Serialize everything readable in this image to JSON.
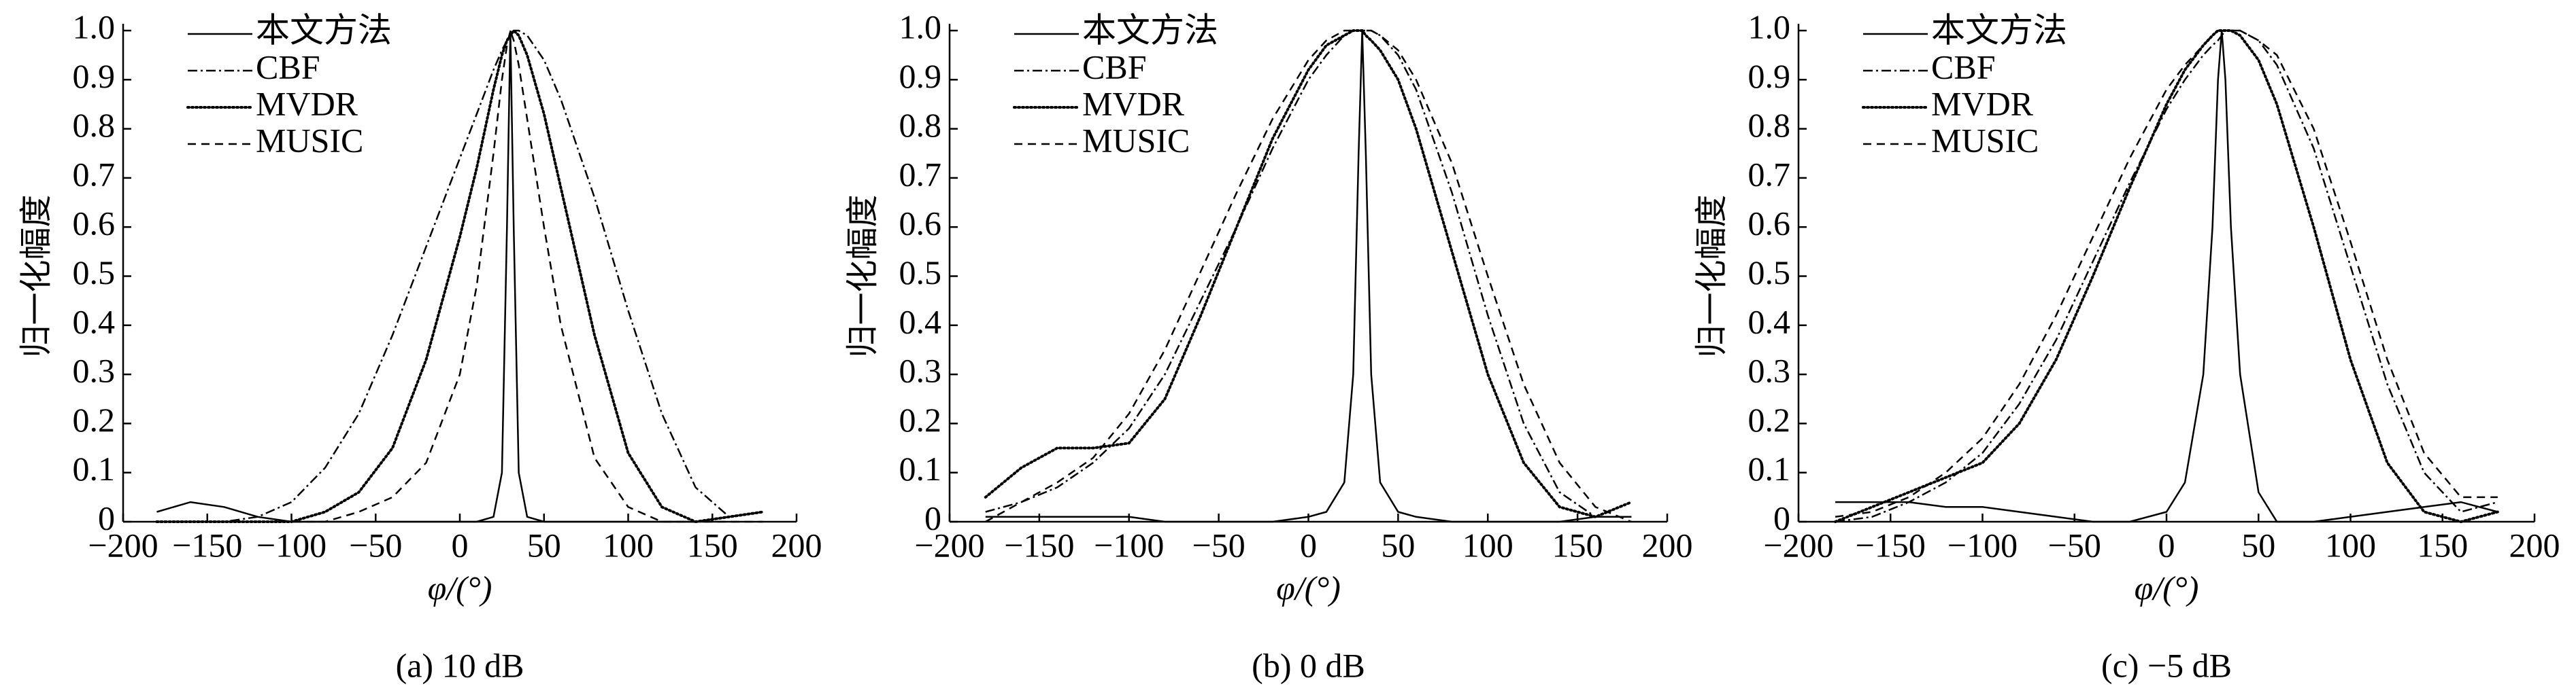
{
  "chart_data": [
    {
      "type": "line",
      "title": "(a) 10 dB",
      "xlabel": "φ/(°)",
      "ylabel": "归一化幅度",
      "x": [
        -180,
        -160,
        -140,
        -120,
        -100,
        -80,
        -60,
        -40,
        -20,
        0,
        10,
        20,
        25,
        28,
        30,
        32,
        35,
        40,
        50,
        60,
        80,
        100,
        120,
        140,
        160,
        180
      ],
      "series": [
        {
          "name": "本文方法",
          "color": "#000000",
          "values": [
            0.02,
            0.04,
            0.03,
            0.01,
            0.0,
            0.0,
            0.0,
            0.0,
            0.0,
            0.0,
            0.0,
            0.01,
            0.1,
            0.6,
            1,
            0.6,
            0.1,
            0.01,
            0.0,
            0.0,
            0.0,
            0.0,
            0.0,
            0.0,
            0.01,
            0.02
          ]
        },
        {
          "name": "CBF",
          "color": "#000000",
          "values": [
            0.0,
            0.0,
            0.0,
            0.01,
            0.04,
            0.11,
            0.22,
            0.38,
            0.56,
            0.74,
            0.83,
            0.92,
            0.96,
            0.98,
            0.99,
            1.0,
            1.0,
            0.99,
            0.94,
            0.86,
            0.66,
            0.43,
            0.22,
            0.07,
            0.01,
            0.02
          ]
        },
        {
          "name": "MVDR",
          "color": "#000000",
          "values": [
            0.0,
            0.0,
            0.0,
            0.0,
            0.0,
            0.02,
            0.06,
            0.15,
            0.33,
            0.58,
            0.72,
            0.88,
            0.95,
            0.98,
            0.99,
            1.0,
            0.99,
            0.95,
            0.83,
            0.68,
            0.38,
            0.14,
            0.03,
            0.0,
            0.01,
            0.02
          ]
        },
        {
          "name": "MUSIC",
          "color": "#000000",
          "values": [
            0.0,
            0.0,
            0.0,
            0.0,
            0.0,
            0.0,
            0.02,
            0.05,
            0.12,
            0.3,
            0.48,
            0.75,
            0.9,
            0.97,
            1.0,
            0.98,
            0.93,
            0.82,
            0.6,
            0.4,
            0.13,
            0.03,
            0.0,
            0.0,
            0.0,
            0.0
          ]
        }
      ],
      "xlim": [
        -200,
        200
      ],
      "xticks": [
        {
          "value": -200,
          "label": "−200"
        },
        {
          "value": -150,
          "label": "−150"
        },
        {
          "value": -100,
          "label": "−100"
        },
        {
          "value": -50,
          "label": "−50"
        },
        0,
        50,
        100,
        150,
        200
      ],
      "ylim": [
        0,
        1
      ],
      "yticks": [
        0,
        0.1,
        0.2,
        0.3,
        0.4,
        0.5,
        0.6,
        0.7,
        0.8,
        0.9,
        {
          "value": 1,
          "label": "1.0"
        }
      ]
    },
    {
      "type": "line",
      "title": "(b) 0 dB",
      "xlabel": "φ/(°)",
      "ylabel": "归一化幅度",
      "x": [
        -180,
        -160,
        -140,
        -120,
        -100,
        -80,
        -60,
        -40,
        -20,
        0,
        10,
        20,
        25,
        28,
        30,
        32,
        35,
        40,
        50,
        60,
        80,
        100,
        120,
        140,
        160,
        180
      ],
      "series": [
        {
          "name": "本文方法",
          "color": "#000000",
          "values": [
            0.01,
            0.01,
            0.01,
            0.01,
            0.01,
            0.0,
            0.0,
            0.0,
            0.0,
            0.01,
            0.02,
            0.08,
            0.3,
            0.75,
            1,
            0.75,
            0.3,
            0.08,
            0.02,
            0.01,
            0.0,
            0.0,
            0.0,
            0.0,
            0.01,
            0.01
          ]
        },
        {
          "name": "CBF",
          "color": "#000000",
          "values": [
            0.02,
            0.04,
            0.07,
            0.12,
            0.19,
            0.3,
            0.45,
            0.6,
            0.76,
            0.9,
            0.95,
            0.99,
            1.0,
            1.0,
            1.0,
            1.0,
            1.0,
            0.99,
            0.95,
            0.88,
            0.67,
            0.42,
            0.2,
            0.06,
            0.01,
            0.01
          ]
        },
        {
          "name": "MVDR",
          "color": "#000000",
          "values": [
            0.05,
            0.11,
            0.15,
            0.15,
            0.16,
            0.25,
            0.42,
            0.6,
            0.78,
            0.92,
            0.97,
            0.99,
            1.0,
            1.0,
            1.0,
            0.99,
            0.98,
            0.96,
            0.9,
            0.8,
            0.55,
            0.3,
            0.12,
            0.03,
            0.01,
            0.04
          ]
        },
        {
          "name": "MUSIC",
          "color": "#000000",
          "values": [
            0.0,
            0.04,
            0.08,
            0.13,
            0.22,
            0.35,
            0.51,
            0.67,
            0.82,
            0.94,
            0.98,
            1.0,
            1.0,
            1.0,
            1.0,
            1.0,
            1.0,
            0.99,
            0.96,
            0.9,
            0.73,
            0.5,
            0.28,
            0.12,
            0.03,
            0.0
          ]
        }
      ],
      "xlim": [
        -200,
        200
      ],
      "xticks": [
        {
          "value": -200,
          "label": "−200"
        },
        {
          "value": -150,
          "label": "−150"
        },
        {
          "value": -100,
          "label": "−100"
        },
        {
          "value": -50,
          "label": "−50"
        },
        0,
        50,
        100,
        150,
        200
      ],
      "ylim": [
        0,
        1
      ],
      "yticks": [
        0,
        0.1,
        0.2,
        0.3,
        0.4,
        0.5,
        0.6,
        0.7,
        0.8,
        0.9,
        {
          "value": 1,
          "label": "1.0"
        }
      ]
    },
    {
      "type": "line",
      "title": "(c) −5 dB",
      "xlabel": "φ/(°)",
      "ylabel": "归一化幅度",
      "x": [
        -180,
        -160,
        -140,
        -120,
        -100,
        -80,
        -60,
        -40,
        -20,
        0,
        10,
        20,
        25,
        28,
        30,
        32,
        35,
        40,
        50,
        60,
        80,
        100,
        120,
        140,
        160,
        180
      ],
      "series": [
        {
          "name": "本文方法",
          "color": "#000000",
          "values": [
            0.04,
            0.04,
            0.04,
            0.03,
            0.03,
            0.02,
            0.01,
            0.0,
            0.0,
            0.02,
            0.08,
            0.3,
            0.6,
            0.9,
            1,
            0.9,
            0.6,
            0.3,
            0.06,
            0.0,
            0.0,
            0.01,
            0.02,
            0.03,
            0.04,
            0.02
          ]
        },
        {
          "name": "CBF",
          "color": "#000000",
          "values": [
            0.0,
            0.01,
            0.04,
            0.08,
            0.14,
            0.24,
            0.37,
            0.53,
            0.69,
            0.84,
            0.9,
            0.95,
            0.97,
            0.98,
            0.99,
            1.0,
            1.0,
            1.0,
            0.98,
            0.93,
            0.76,
            0.52,
            0.28,
            0.1,
            0.02,
            0.04
          ]
        },
        {
          "name": "MVDR",
          "color": "#000000",
          "values": [
            0.0,
            0.03,
            0.06,
            0.09,
            0.12,
            0.2,
            0.33,
            0.5,
            0.68,
            0.85,
            0.92,
            0.97,
            0.99,
            1.0,
            1.0,
            1.0,
            1.0,
            0.99,
            0.94,
            0.85,
            0.6,
            0.33,
            0.12,
            0.02,
            0.0,
            0.02
          ]
        },
        {
          "name": "MUSIC",
          "color": "#000000",
          "values": [
            0.01,
            0.02,
            0.05,
            0.1,
            0.17,
            0.28,
            0.42,
            0.58,
            0.74,
            0.88,
            0.93,
            0.97,
            0.99,
            1.0,
            1.0,
            1.0,
            1.0,
            1.0,
            0.98,
            0.95,
            0.8,
            0.57,
            0.33,
            0.14,
            0.05,
            0.05
          ]
        }
      ],
      "xlim": [
        -200,
        200
      ],
      "xticks": [
        {
          "value": -200,
          "label": "−200"
        },
        {
          "value": -150,
          "label": "−150"
        },
        {
          "value": -100,
          "label": "−100"
        },
        {
          "value": -50,
          "label": "−50"
        },
        0,
        50,
        100,
        150,
        200
      ],
      "ylim": [
        0,
        1
      ],
      "yticks": [
        0,
        0.1,
        0.2,
        0.3,
        0.4,
        0.5,
        0.6,
        0.7,
        0.8,
        0.9,
        {
          "value": 1,
          "label": "1.0"
        }
      ]
    }
  ]
}
